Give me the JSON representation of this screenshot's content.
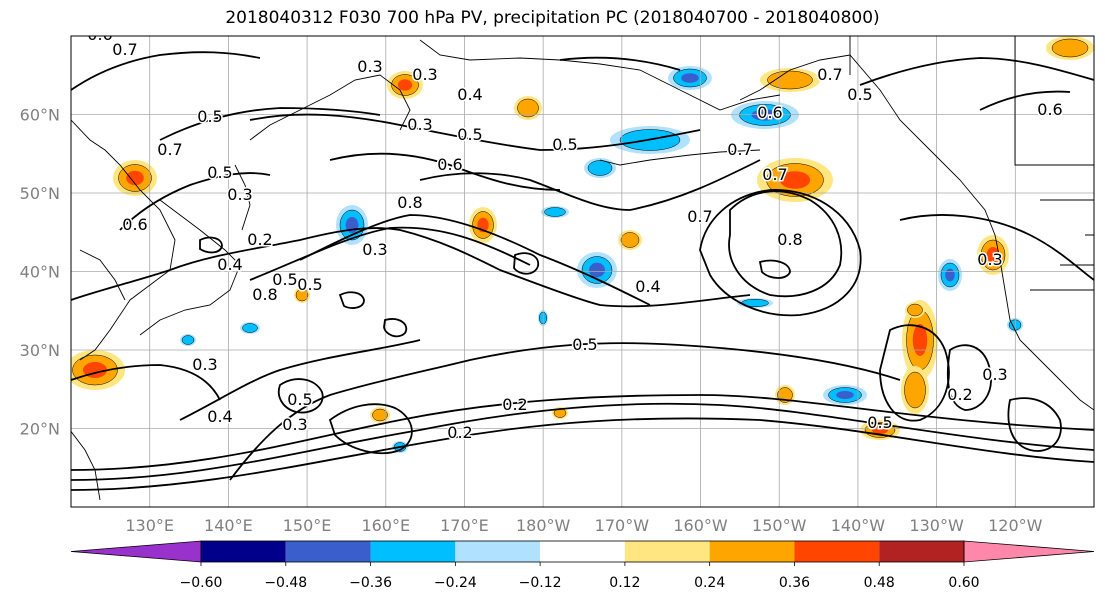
{
  "title": "2018040312 F030 700 hPa PV, precipitation PC (2018040700 - 2018040800)",
  "map": {
    "lat_labels": [
      "60°N",
      "50°N",
      "40°N",
      "30°N",
      "20°N"
    ],
    "lat_values": [
      60,
      50,
      40,
      30,
      20
    ],
    "lon_labels": [
      "130°E",
      "140°E",
      "150°E",
      "160°E",
      "170°E",
      "180°W",
      "170°W",
      "160°W",
      "150°W",
      "140°W",
      "130°W",
      "120°W"
    ],
    "lon_values": [
      130,
      140,
      150,
      160,
      170,
      180,
      190,
      200,
      210,
      220,
      230,
      240
    ],
    "lat_range": [
      10,
      70
    ],
    "lon_range": [
      120,
      250
    ],
    "grid": true,
    "label_color": "#808080",
    "contour_labels": [
      {
        "t": "0.6"
      },
      {
        "t": "0.7"
      },
      {
        "t": "0.5"
      },
      {
        "t": "0.7"
      },
      {
        "t": "0.5"
      },
      {
        "t": "0.3"
      },
      {
        "t": "0.6"
      },
      {
        "t": "0.2"
      },
      {
        "t": "0.4"
      },
      {
        "t": "0.5"
      },
      {
        "t": "0.5"
      },
      {
        "t": "0.6"
      },
      {
        "t": "0.8"
      },
      {
        "t": "0.3"
      },
      {
        "t": "0.8"
      },
      {
        "t": "0.7"
      },
      {
        "t": "0.7"
      },
      {
        "t": "0.6"
      },
      {
        "t": "0.8"
      },
      {
        "t": "0.7"
      },
      {
        "t": "0.5"
      },
      {
        "t": "0.6"
      },
      {
        "t": "0.3"
      },
      {
        "t": "0.7"
      },
      {
        "t": "0.4"
      },
      {
        "t": "0.3"
      },
      {
        "t": "0.5"
      },
      {
        "t": "0.5"
      },
      {
        "t": "0.3"
      },
      {
        "t": "0.3"
      },
      {
        "t": "0.4"
      },
      {
        "t": "0.5"
      },
      {
        "t": "0.2"
      },
      {
        "t": "0.3"
      },
      {
        "t": "0.5"
      },
      {
        "t": "0.2"
      },
      {
        "t": "0.3"
      },
      {
        "t": "0.4"
      },
      {
        "t": "0.3"
      },
      {
        "t": "0.2"
      },
      {
        "t": "0.5"
      }
    ]
  },
  "colorbar": {
    "ticks": [
      "−0.60",
      "−0.48",
      "−0.36",
      "−0.24",
      "−0.12",
      "0.12",
      "0.24",
      "0.36",
      "0.48",
      "0.60"
    ],
    "colors": [
      "#9932cc",
      "#00008b",
      "#3a5fcd",
      "#00bfff",
      "#b0e2ff",
      "#ffffff",
      "#ffe680",
      "#ffa500",
      "#ff4500",
      "#b22222",
      "#ff88aa"
    ]
  },
  "precip_colors": {
    "pos1": "#ffe680",
    "pos2": "#ffa500",
    "pos3": "#ff4500",
    "neg1": "#b0e2ff",
    "neg2": "#00bfff",
    "neg3": "#3a5fcd"
  }
}
